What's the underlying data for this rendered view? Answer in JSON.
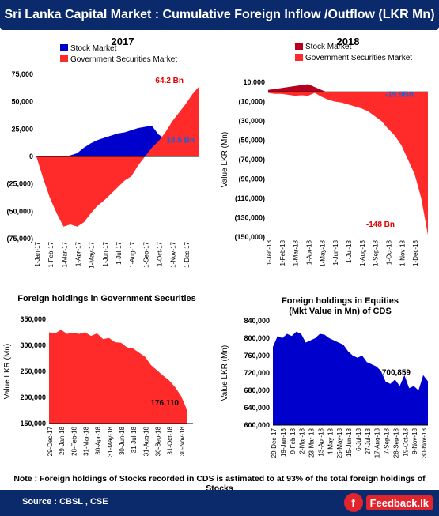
{
  "header": {
    "title": "Sri Lanka Capital Market : Cumulative Foreign Inflow /Outflow  (LKR Mn)"
  },
  "footer": {
    "note": "Note : Foreign holdings of Stocks recorded in CDS is astimated to at  93% of the total foreign holdings of Stocks",
    "source": "Source : CBSL , CSE",
    "logo_text": "Feedback.lk",
    "logo_icon": "f"
  },
  "colors": {
    "stock": "#0000cc",
    "gov": "#ff2a2a",
    "gov_dark": "#b8001e",
    "banner": "#0b2a6b"
  },
  "chart_data": [
    {
      "id": "c2017",
      "type": "area",
      "title": "2017",
      "ylabel": "",
      "ylim": [
        -75000,
        75000
      ],
      "yticks": [
        75000,
        50000,
        25000,
        0,
        -25000,
        -50000,
        -75000
      ],
      "yticklabels": [
        "75,000",
        "50,000",
        "25,000",
        "0",
        "(25,000)",
        "(50,000)",
        "(75,000)"
      ],
      "xticklabels": [
        "1-Jan-17",
        "1-Feb-17",
        "1-Mar-17",
        "1-Apr-17",
        "1-May-17",
        "1-Jun-17",
        "1-Jul-17",
        "1-Aug-17",
        "1-Sep-17",
        "1-Oct-17",
        "1-Nov-17",
        "1-Dec-17"
      ],
      "x": [
        0,
        0.5,
        1,
        1.5,
        2,
        2.5,
        3,
        3.5,
        4,
        4.5,
        5,
        5.5,
        6,
        6.5,
        7,
        7.5,
        8,
        8.5,
        9,
        9.5,
        10,
        10.5,
        11,
        11.5,
        12
      ],
      "series": [
        {
          "name": "Stock Market",
          "values": [
            0,
            0,
            0,
            0,
            0,
            1000,
            3000,
            8000,
            12000,
            15000,
            17000,
            19000,
            21000,
            22000,
            24000,
            26000,
            27000,
            28000,
            20000,
            16000,
            15000,
            16000,
            17000,
            18000,
            18500
          ]
        },
        {
          "name": "Government Securities Market",
          "values": [
            0,
            -20000,
            -38000,
            -52000,
            -64000,
            -62000,
            -64000,
            -60000,
            -52000,
            -45000,
            -40000,
            -34000,
            -28000,
            -22000,
            -18000,
            -8000,
            0,
            8000,
            14000,
            22000,
            32000,
            40000,
            48000,
            57000,
            64200
          ]
        }
      ],
      "annotations": [
        "64.2 Bn",
        "18.5 Bn"
      ]
    },
    {
      "id": "c2018",
      "type": "area",
      "title": "2018",
      "ylabel": "Value LKR (Mn)",
      "ylim": [
        -150000,
        10000
      ],
      "yticks": [
        10000,
        -10000,
        -30000,
        -50000,
        -70000,
        -90000,
        -110000,
        -130000,
        -150000
      ],
      "yticklabels": [
        "10,000",
        "(10,000)",
        "(30,000)",
        "(50,000)",
        "(70,000)",
        "(90,000)",
        "(110,000)",
        "(130,000)",
        "(150,000)"
      ],
      "xticklabels": [
        "1-Jan-18",
        "1-Feb-18",
        "1-Mar-18",
        "1-Apr-18",
        "1-May-18",
        "1-Jun-18",
        "1-Jul-18",
        "1-Aug-18",
        "1-Sep-18",
        "1-Oct-18",
        "1-Nov-18",
        "1-Dec-18"
      ],
      "x": [
        0,
        0.5,
        1,
        1.5,
        2,
        2.5,
        3,
        3.5,
        4,
        4.5,
        5,
        5.5,
        6,
        6.5,
        7,
        7.5,
        8,
        8.5,
        9,
        9.5,
        10,
        10.5,
        11,
        11.5,
        12
      ],
      "series": [
        {
          "name": "Stock Market",
          "values": [
            2000,
            3000,
            4000,
            5000,
            6000,
            7000,
            8000,
            5000,
            2000,
            -1000,
            -3000,
            -5000,
            -7000,
            -8000,
            -9000,
            -10000,
            -11000,
            -12000,
            -13000,
            -14000,
            -15000,
            -16000,
            -17000,
            -18000,
            -19900
          ]
        },
        {
          "name": "Government Securities Market",
          "values": [
            -1000,
            -2000,
            -2000,
            -3000,
            -4000,
            -3500,
            -4000,
            -1000,
            -5000,
            -8000,
            -10000,
            -11000,
            -13000,
            -15000,
            -17000,
            -20000,
            -25000,
            -30000,
            -38000,
            -45000,
            -55000,
            -70000,
            -85000,
            -110000,
            -148000
          ]
        }
      ],
      "annotations": [
        "-19.9Bn",
        "-148 Bn"
      ]
    },
    {
      "id": "cgov",
      "type": "area",
      "title": "Foreign holdings in Government Securities",
      "ylabel": "Value LKR (Mn)",
      "ylim": [
        150000,
        350000
      ],
      "yticks": [
        350000,
        300000,
        250000,
        200000,
        150000
      ],
      "yticklabels": [
        "350,000",
        "300,000",
        "250,000",
        "200,000",
        "150,000"
      ],
      "xticklabels": [
        "29-Dec-17",
        "29-Jan-18",
        "28-Feb-18",
        "31-Mar-18",
        "30-Apr-18",
        "31-May-18",
        "30-Jun-18",
        "31-Jul-18",
        "31-Aug-18",
        "30-Sep-18",
        "31-Oct-18",
        "30-Nov-18"
      ],
      "x": [
        0,
        0.5,
        1,
        1.5,
        2,
        2.5,
        3,
        3.5,
        4,
        4.5,
        5,
        5.5,
        6,
        6.5,
        7,
        7.5,
        8,
        8.5,
        9,
        9.5,
        10,
        10.5,
        11,
        11.5
      ],
      "series": [
        {
          "name": "Foreign holdings in Government Securities",
          "values": [
            325000,
            323000,
            330000,
            322000,
            324000,
            322000,
            325000,
            318000,
            323000,
            312000,
            314000,
            306000,
            305000,
            296000,
            294000,
            286000,
            278000,
            262000,
            252000,
            242000,
            233000,
            220000,
            203000,
            176110
          ]
        }
      ],
      "annotations": [
        "176,110"
      ]
    },
    {
      "id": "ceq",
      "type": "area",
      "title": "Foreign holdings in Equities",
      "subtitle": "(Mkt Value in Mn) of CDS",
      "ylabel": "Value LKR (Mn)",
      "ylim": [
        600000,
        840000
      ],
      "yticks": [
        840000,
        800000,
        760000,
        720000,
        680000,
        640000,
        600000
      ],
      "yticklabels": [
        "840,000",
        "800,000",
        "760,000",
        "720,000",
        "680,000",
        "640,000",
        "600,000"
      ],
      "xticklabels": [
        "29-Dec-17",
        "19-Jan-18",
        "9-Feb-18",
        "2-Mar-18",
        "23-Mar-18",
        "13-Apr-18",
        "4-May-18",
        "25-May-18",
        "15-Jun-18",
        "6-Jul-18",
        "27-Jul-18",
        "17-Aug-18",
        "7-Sep-18",
        "28-Sep-18",
        "19-Oct-18",
        "9-Nov-18",
        "30-Nov-18"
      ],
      "x": [
        0,
        0.5,
        1,
        1.5,
        2,
        2.5,
        3,
        3.5,
        4,
        4.5,
        5,
        5.5,
        6,
        6.5,
        7,
        7.5,
        8,
        8.5,
        9,
        9.5,
        10,
        10.5,
        11,
        11.5,
        12,
        12.5,
        13,
        13.5,
        14,
        14.5,
        15,
        15.5,
        16,
        16.5
      ],
      "series": [
        {
          "name": "Foreign holdings in Equities",
          "values": [
            780000,
            805000,
            800000,
            810000,
            805000,
            815000,
            810000,
            790000,
            795000,
            800000,
            810000,
            808000,
            800000,
            795000,
            790000,
            785000,
            770000,
            760000,
            755000,
            760000,
            745000,
            740000,
            735000,
            725000,
            700000,
            695000,
            705000,
            690000,
            715000,
            685000,
            690000,
            680000,
            715000,
            700859
          ]
        }
      ],
      "annotations": [
        "700,859"
      ]
    }
  ]
}
